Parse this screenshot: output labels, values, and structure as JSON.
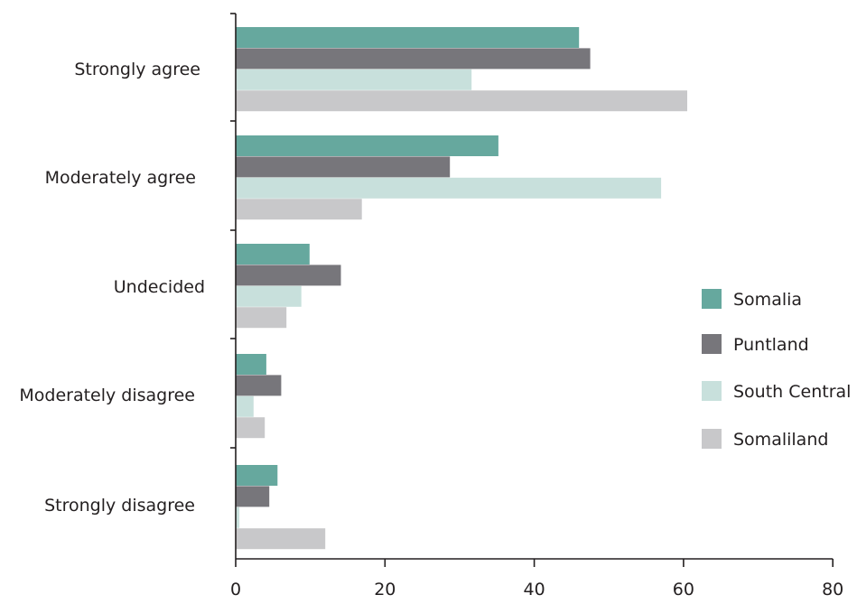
{
  "chart_data": {
    "type": "bar",
    "orientation": "horizontal",
    "title": "",
    "xlabel": "",
    "ylabel": "",
    "categories": [
      "Strongly agree",
      "Moderately agree",
      "Undecided",
      "Moderately disagree",
      "Strongly disagree"
    ],
    "series": [
      {
        "name": "Somalia",
        "color": "#66a89e",
        "values": [
          46.0,
          35.2,
          9.9,
          4.1,
          5.6
        ]
      },
      {
        "name": "Puntland",
        "color": "#77767b",
        "values": [
          47.5,
          28.7,
          14.1,
          6.1,
          4.5
        ]
      },
      {
        "name": "South Central",
        "color": "#c8e0dc",
        "values": [
          31.6,
          57.0,
          8.8,
          2.4,
          0.5
        ]
      },
      {
        "name": "Somaliland",
        "color": "#c8c8ca",
        "values": [
          60.5,
          16.9,
          6.8,
          3.9,
          12.0
        ]
      }
    ],
    "xlim": [
      0,
      80
    ],
    "xticks": [
      "0",
      "20",
      "40",
      "60",
      "80"
    ],
    "grid": false,
    "legend_position": "right"
  }
}
